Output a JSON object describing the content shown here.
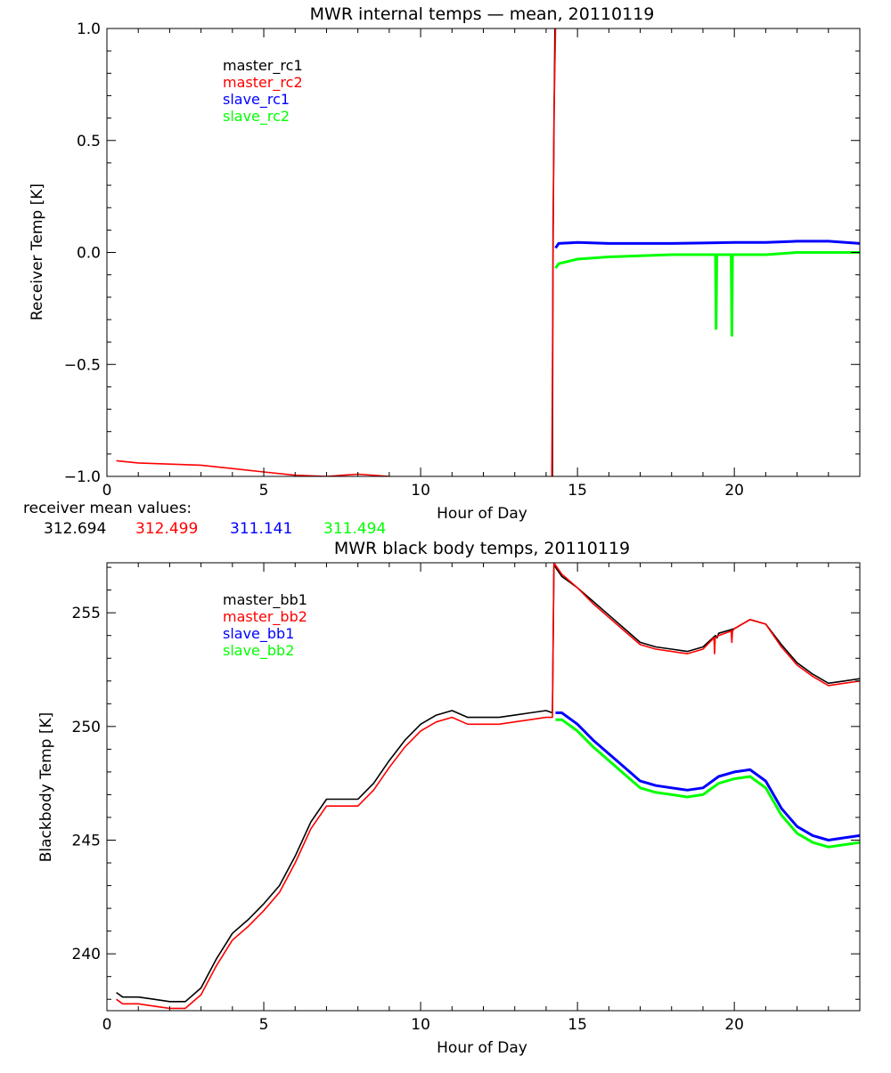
{
  "colors": {
    "black": "#000000",
    "red": "#ff0000",
    "blue": "#0000ff",
    "green": "#00ff00"
  },
  "receiver_mean": {
    "label": "receiver mean values:",
    "values": [
      {
        "value": "312.694",
        "color": "#000000"
      },
      {
        "value": "312.499",
        "color": "#ff0000"
      },
      {
        "value": "311.141",
        "color": "#0000ff"
      },
      {
        "value": "311.494",
        "color": "#00ff00"
      }
    ]
  },
  "chart_data": [
    {
      "type": "line",
      "title": "MWR internal temps — mean, 20110119",
      "xlabel": "Hour of Day",
      "ylabel": "Receiver Temp [K]",
      "xlim": [
        0,
        24
      ],
      "ylim": [
        -1.0,
        1.0
      ],
      "xticks": [
        0,
        5,
        10,
        15,
        20
      ],
      "yticks": [
        -1.0,
        -0.5,
        0.0,
        0.5,
        1.0
      ],
      "ytick_labels": [
        "−1.0",
        "−0.5",
        "0.0",
        "0.5",
        "1.0"
      ],
      "legend_position": "top-left",
      "series": [
        {
          "name": "master_rc1",
          "color": "#000000",
          "x": [
            14.2,
            14.22,
            14.28,
            14.32
          ],
          "y": [
            -1.0,
            0.1,
            1.0,
            1.0
          ]
        },
        {
          "name": "master_rc2",
          "color": "#ff0000",
          "x": [
            0.3,
            1,
            2,
            3,
            4,
            5,
            6,
            7,
            8,
            9,
            9.5,
            10,
            14.12,
            14.18,
            14.25,
            14.3
          ],
          "y": [
            -0.93,
            -0.94,
            -0.945,
            -0.95,
            -0.965,
            -0.98,
            -0.995,
            -1.0,
            -0.99,
            -1.0,
            -1.01,
            -1.02,
            -1.02,
            -1.0,
            0.6,
            1.0
          ]
        },
        {
          "name": "slave_rc1",
          "color": "#0000ff",
          "x": [
            14.3,
            14.4,
            15,
            16,
            17,
            18,
            19,
            20,
            21,
            22,
            23,
            24
          ],
          "y": [
            0.02,
            0.04,
            0.045,
            0.04,
            0.04,
            0.04,
            0.042,
            0.045,
            0.045,
            0.05,
            0.05,
            0.04
          ]
        },
        {
          "name": "slave_rc2",
          "color": "#00ff00",
          "x": [
            14.3,
            14.4,
            15,
            16,
            17,
            18,
            19,
            19.4,
            19.42,
            19.44,
            19.9,
            19.92,
            19.94,
            20,
            21,
            22,
            23,
            24
          ],
          "y": [
            -0.07,
            -0.05,
            -0.03,
            -0.02,
            -0.015,
            -0.01,
            -0.01,
            -0.01,
            -0.34,
            -0.01,
            -0.01,
            -0.37,
            -0.01,
            -0.01,
            -0.01,
            0.0,
            0.0,
            0.0
          ]
        }
      ]
    },
    {
      "type": "line",
      "title": "MWR black body temps, 20110119",
      "xlabel": "Hour of Day",
      "ylabel": "Blackbody Temp [K]",
      "xlim": [
        0,
        24
      ],
      "ylim": [
        237.5,
        257.2
      ],
      "xticks": [
        0,
        5,
        10,
        15,
        20
      ],
      "yticks": [
        240,
        245,
        250,
        255
      ],
      "ytick_labels": [
        "240",
        "245",
        "250",
        "255"
      ],
      "legend_position": "top-left",
      "series": [
        {
          "name": "master_bb1",
          "color": "#000000",
          "x": [
            0.3,
            0.5,
            1,
            1.5,
            2,
            2.5,
            3,
            3.5,
            4,
            4.5,
            5,
            5.5,
            6,
            6.5,
            7,
            7.5,
            8,
            8.5,
            9,
            9.5,
            10,
            10.5,
            11,
            11.5,
            12,
            12.5,
            13,
            13.5,
            14,
            14.2,
            14.25,
            14.5,
            15,
            15.5,
            16,
            16.5,
            17,
            17.5,
            18,
            18.5,
            19,
            19.4,
            19.45,
            19.5,
            20,
            20.5,
            21,
            21.5,
            22,
            22.5,
            23,
            23.5,
            24
          ],
          "y": [
            238.3,
            238.1,
            238.1,
            238.0,
            237.9,
            237.9,
            238.5,
            239.8,
            240.9,
            241.5,
            242.2,
            243.0,
            244.3,
            245.8,
            246.8,
            246.8,
            246.8,
            247.5,
            248.5,
            249.4,
            250.1,
            250.5,
            250.7,
            250.4,
            250.4,
            250.4,
            250.5,
            250.6,
            250.7,
            250.6,
            257.1,
            256.6,
            256.1,
            255.5,
            254.9,
            254.3,
            253.7,
            253.5,
            253.4,
            253.3,
            253.5,
            254.0,
            253.9,
            254.1,
            254.3,
            254.7,
            254.5,
            253.6,
            252.8,
            252.3,
            251.9,
            252.0,
            252.1
          ]
        },
        {
          "name": "master_bb2",
          "color": "#ff0000",
          "x": [
            0.3,
            0.5,
            1,
            1.5,
            2,
            2.5,
            3,
            3.5,
            4,
            4.5,
            5,
            5.5,
            6,
            6.5,
            7,
            7.5,
            8,
            8.5,
            9,
            9.5,
            10,
            10.5,
            11,
            11.5,
            12,
            12.5,
            13,
            13.5,
            14,
            14.2,
            14.25,
            14.5,
            15,
            15.5,
            16,
            16.5,
            17,
            17.5,
            18,
            18.5,
            19,
            19.35,
            19.37,
            19.39,
            19.5,
            19.9,
            19.92,
            19.94,
            20,
            20.5,
            21,
            21.5,
            22,
            22.5,
            23,
            23.5,
            24
          ],
          "y": [
            238.0,
            237.8,
            237.8,
            237.7,
            237.6,
            237.6,
            238.2,
            239.5,
            240.6,
            241.2,
            241.9,
            242.7,
            244.0,
            245.5,
            246.5,
            246.5,
            246.5,
            247.2,
            248.2,
            249.1,
            249.8,
            250.2,
            250.4,
            250.1,
            250.1,
            250.1,
            250.2,
            250.3,
            250.4,
            250.4,
            257.2,
            256.7,
            256.1,
            255.4,
            254.8,
            254.2,
            253.6,
            253.4,
            253.3,
            253.2,
            253.4,
            253.9,
            253.2,
            253.9,
            254.0,
            254.2,
            253.7,
            254.2,
            254.3,
            254.7,
            254.5,
            253.5,
            252.7,
            252.2,
            251.8,
            251.9,
            252.0
          ]
        },
        {
          "name": "slave_bb1",
          "color": "#0000ff",
          "x": [
            14.3,
            14.5,
            15,
            15.5,
            16,
            16.5,
            17,
            17.5,
            18,
            18.5,
            19,
            19.5,
            20,
            20.5,
            21,
            21.5,
            22,
            22.5,
            23,
            23.5,
            24
          ],
          "y": [
            250.6,
            250.6,
            250.1,
            249.4,
            248.8,
            248.2,
            247.6,
            247.4,
            247.3,
            247.2,
            247.3,
            247.8,
            248.0,
            248.1,
            247.6,
            246.4,
            245.6,
            245.2,
            245.0,
            245.1,
            245.2
          ]
        },
        {
          "name": "slave_bb2",
          "color": "#00ff00",
          "x": [
            14.3,
            14.5,
            15,
            15.5,
            16,
            16.5,
            17,
            17.5,
            18,
            18.5,
            19,
            19.5,
            20,
            20.5,
            21,
            21.5,
            22,
            22.5,
            23,
            23.5,
            24
          ],
          "y": [
            250.3,
            250.3,
            249.8,
            249.1,
            248.5,
            247.9,
            247.3,
            247.1,
            247.0,
            246.9,
            247.0,
            247.5,
            247.7,
            247.8,
            247.3,
            246.1,
            245.3,
            244.9,
            244.7,
            244.8,
            244.9
          ]
        }
      ]
    }
  ]
}
